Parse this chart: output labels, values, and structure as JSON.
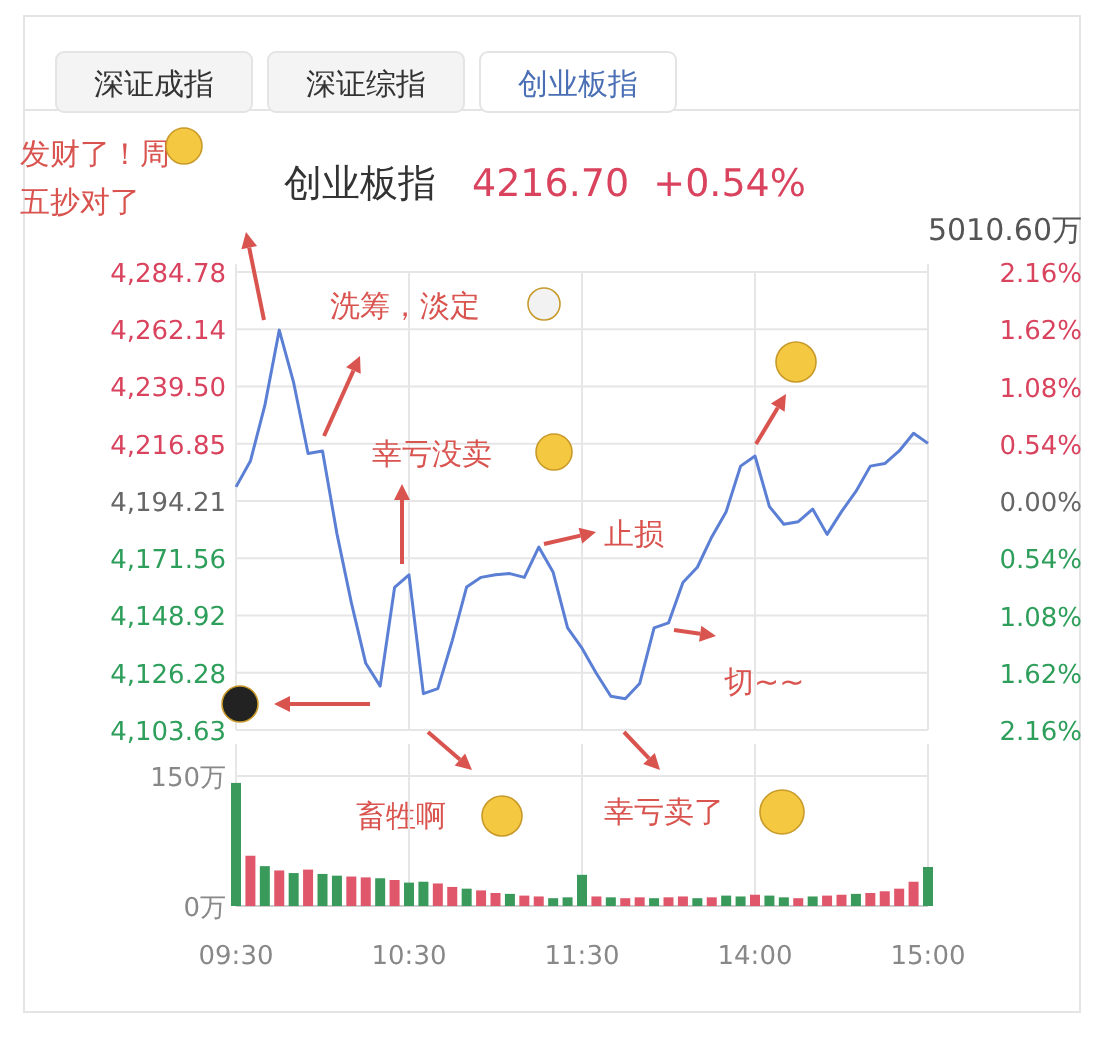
{
  "chart_data": [
    {
      "type": "other",
      "annotations": [
        "深证成指",
        "深证综指",
        "创业板指"
      ]
    },
    {
      "type": "line",
      "title": "创业板指",
      "subtitle": "4216.70  +0.54%",
      "categories": [
        null,
        null,
        null,
        null,
        null,
        null,
        null,
        null,
        null,
        null,
        null,
        null,
        null,
        null,
        null,
        null,
        null,
        null,
        null,
        null,
        null,
        null,
        null,
        null,
        null,
        null,
        null,
        null,
        null,
        null,
        null,
        null,
        null,
        null,
        null,
        null,
        null,
        null,
        null,
        null,
        null,
        null,
        null,
        null,
        null,
        null,
        null,
        null,
        null
      ],
      "series": [
        {
          "color": "#5b7fd4",
          "values": [
            4199.8,
            4210,
            4232,
            4261.8,
            4241,
            4213,
            4214,
            4181.3,
            4154,
            4130,
            4121,
            4160,
            4165,
            4118,
            4120,
            4139,
            4160.2,
            4164,
            4165,
            4165.5,
            4164,
            4176,
            4166,
            4144,
            4136,
            4126,
            4117,
            4116,
            4122,
            4144,
            4146,
            4162,
            4168,
            4180,
            4190,
            4208,
            4212,
            4192,
            4185,
            4186,
            4191,
            4181,
            4190,
            4198,
            4208,
            4209,
            4214,
            4221,
            4217
          ]
        }
      ],
      "ylim": [
        4103.63,
        4284.78
      ],
      "yticks": [
        {
          "value": 4103.63,
          "label": "4,103.63"
        },
        {
          "value": 4126.28,
          "label": "4,126.28"
        },
        {
          "value": 4148.92,
          "label": "4,148.92"
        },
        {
          "value": 4171.56,
          "label": "4,171.56"
        },
        {
          "value": 4194.21,
          "label": "4,194.21"
        },
        {
          "value": 4216.85,
          "label": "4,216.85"
        },
        {
          "value": 4239.5,
          "label": "4,239.50"
        },
        {
          "value": 4262.14,
          "label": "4,262.14"
        },
        {
          "value": 4284.78,
          "label": "4,284.78"
        }
      ],
      "y2lim": [
        -2.16,
        2.16
      ],
      "y2ticks": [
        {
          "value": 2.16,
          "label": "2.16%"
        },
        {
          "value": 1.62,
          "label": "1.62%"
        },
        {
          "value": 1.08,
          "label": "1.08%"
        },
        {
          "value": 0.54,
          "label": "0.54%"
        },
        {
          "value": 0,
          "label": "0.00%"
        },
        {
          "value": -0.54,
          "label": "0.54%"
        },
        {
          "value": -1.08,
          "label": "1.08%"
        },
        {
          "value": -1.62,
          "label": "1.62%"
        },
        {
          "value": -2.16,
          "label": "2.16%"
        }
      ],
      "grid": true,
      "tick_labels": "y",
      "annotations": [
        "发财了！周五抄对了",
        "洗筹，淡定",
        "幸亏没卖",
        "止损",
        "切~~",
        "畜牲啊",
        "幸亏卖了",
        "5010.60万"
      ]
    },
    {
      "type": "bar",
      "categories": [
        "09:30",
        null,
        null,
        null,
        null,
        null,
        null,
        null,
        null,
        null,
        null,
        null,
        "10:30",
        null,
        null,
        null,
        null,
        null,
        null,
        null,
        null,
        null,
        null,
        null,
        "11:30",
        null,
        null,
        null,
        null,
        null,
        null,
        null,
        null,
        null,
        null,
        null,
        "14:00",
        null,
        null,
        null,
        null,
        null,
        null,
        null,
        null,
        null,
        null,
        null,
        "15:00"
      ],
      "values": [
        142,
        58,
        46,
        41,
        38,
        42,
        37,
        35,
        34,
        33,
        32,
        30,
        27,
        28,
        26,
        22,
        20,
        18,
        15,
        14,
        12,
        11,
        9,
        10,
        36,
        11,
        10,
        9,
        10,
        9,
        10,
        11,
        9,
        10,
        12,
        11,
        13,
        12,
        10,
        9,
        11,
        12,
        13,
        14,
        15,
        17,
        20,
        28,
        45
      ],
      "colors": [
        "#3a9a5b",
        "#e0566b",
        "#3a9a5b",
        "#e0566b",
        "#3a9a5b",
        "#e0566b",
        "#3a9a5b",
        "#3a9a5b",
        "#e0566b",
        "#e0566b",
        "#3a9a5b",
        "#e0566b",
        "#3a9a5b",
        "#3a9a5b",
        "#e0566b",
        "#e0566b",
        "#3a9a5b",
        "#e0566b",
        "#e0566b",
        "#3a9a5b",
        "#e0566b",
        "#e0566b",
        "#3a9a5b",
        "#3a9a5b",
        "#3a9a5b",
        "#e0566b",
        "#3a9a5b",
        "#e0566b",
        "#e0566b",
        "#3a9a5b",
        "#e0566b",
        "#e0566b",
        "#3a9a5b",
        "#e0566b",
        "#3a9a5b",
        "#3a9a5b",
        "#e0566b",
        "#3a9a5b",
        "#3a9a5b",
        "#e0566b",
        "#3a9a5b",
        "#e0566b",
        "#e0566b",
        "#3a9a5b",
        "#e0566b",
        "#e0566b",
        "#e0566b",
        "#e0566b",
        "#3a9a5b"
      ],
      "ylim": [
        0,
        150
      ],
      "yticks": [
        {
          "value": 0,
          "label": "0万"
        },
        {
          "value": 150,
          "label": "150万"
        }
      ],
      "grid": true
    }
  ]
}
